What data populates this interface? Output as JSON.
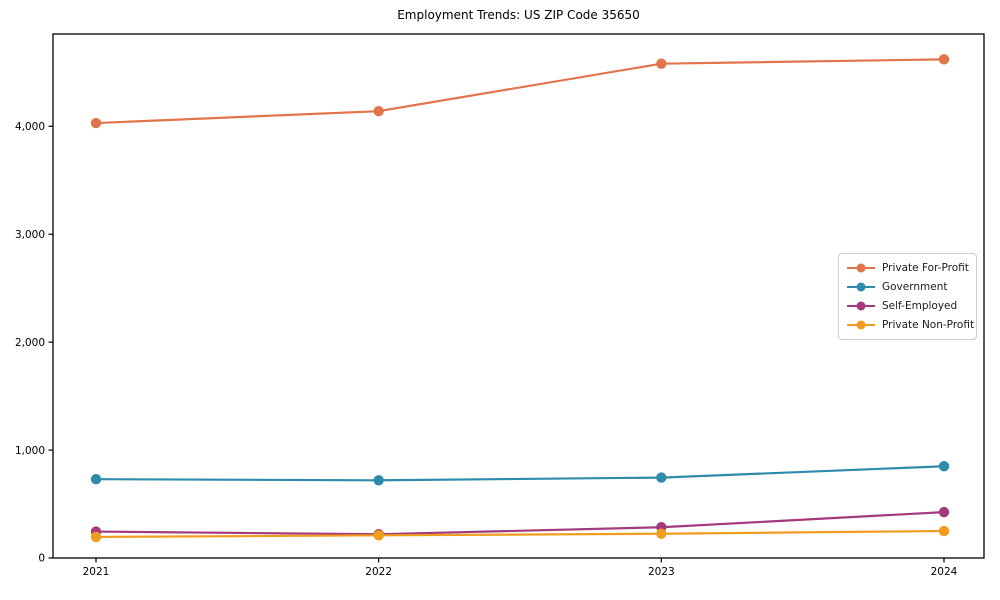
{
  "title": "Employment Trends: US ZIP Code 35650",
  "chart_data": {
    "type": "line",
    "title": "Employment Trends: US ZIP Code 35650",
    "xlabel": "",
    "ylabel": "",
    "categories": [
      "2021",
      "2022",
      "2023",
      "2024"
    ],
    "series": [
      {
        "name": "Private For-Profit",
        "color": "#E2744B",
        "values": [
          4030,
          4140,
          4580,
          4620
        ]
      },
      {
        "name": "Government",
        "color": "#2E8BAB",
        "values": [
          730,
          720,
          745,
          850
        ]
      },
      {
        "name": "Self-Employed",
        "color": "#A23A7D",
        "values": [
          245,
          220,
          285,
          425
        ]
      },
      {
        "name": "Private Non-Profit",
        "color": "#F09C1E",
        "values": [
          195,
          210,
          225,
          250
        ]
      }
    ],
    "ylim": [
      0,
      4855
    ],
    "yticks": [
      0,
      1000,
      2000,
      3000,
      4000
    ],
    "ytick_labels": [
      "0",
      "1,000",
      "2,000",
      "3,000",
      "4,000"
    ],
    "grid": false,
    "legend_position": "center right",
    "marker": "circle",
    "frame_color": "#000000",
    "background_color": "#ffffff"
  }
}
